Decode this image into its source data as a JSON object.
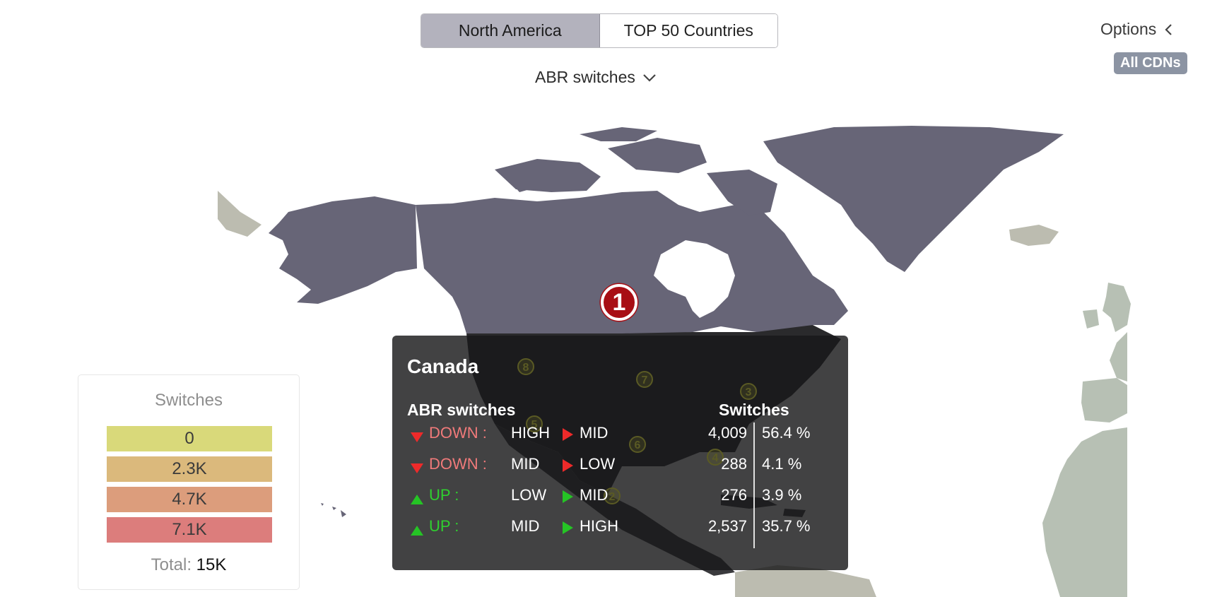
{
  "view_toggle": {
    "options": [
      "North America",
      "TOP 50 Countries"
    ],
    "selected": "North America"
  },
  "metric_selector": {
    "label": "ABR switches"
  },
  "options_panel": {
    "label": "Options",
    "cdn_badge": "All CDNs"
  },
  "map": {
    "highlighted_country": "Canada",
    "rank_marker": "1",
    "colors": {
      "highlight": "#676577",
      "neighbors": "#bcbcb0",
      "europe_africa": "#b7c0b4",
      "ocean": "#ffffff",
      "marker": "#a80e14"
    },
    "inset_markers": [
      "8",
      "7",
      "3",
      "5",
      "6",
      "4",
      "2"
    ]
  },
  "legend": {
    "title": "Switches",
    "bins": [
      {
        "label": "0",
        "color": "#d9d97a"
      },
      {
        "label": "2.3K",
        "color": "#dbb97c"
      },
      {
        "label": "4.7K",
        "color": "#dc9d7c"
      },
      {
        "label": "7.1K",
        "color": "#dc7d7c"
      }
    ],
    "total_label": "Total:",
    "total_value": "15K"
  },
  "tooltip": {
    "country": "Canada",
    "col_left": "ABR switches",
    "col_right": "Switches",
    "rows": [
      {
        "dir": "down",
        "dir_label": "DOWN :",
        "from": "HIGH",
        "to": "MID",
        "count": "4,009",
        "pct": "56.4 %"
      },
      {
        "dir": "down",
        "dir_label": "DOWN :",
        "from": "MID",
        "to": "LOW",
        "count": "288",
        "pct": "4.1 %"
      },
      {
        "dir": "up",
        "dir_label": "UP :",
        "from": "LOW",
        "to": "MID",
        "count": "276",
        "pct": "3.9 %"
      },
      {
        "dir": "up",
        "dir_label": "UP :",
        "from": "MID",
        "to": "HIGH",
        "count": "2,537",
        "pct": "35.7 %"
      }
    ]
  }
}
